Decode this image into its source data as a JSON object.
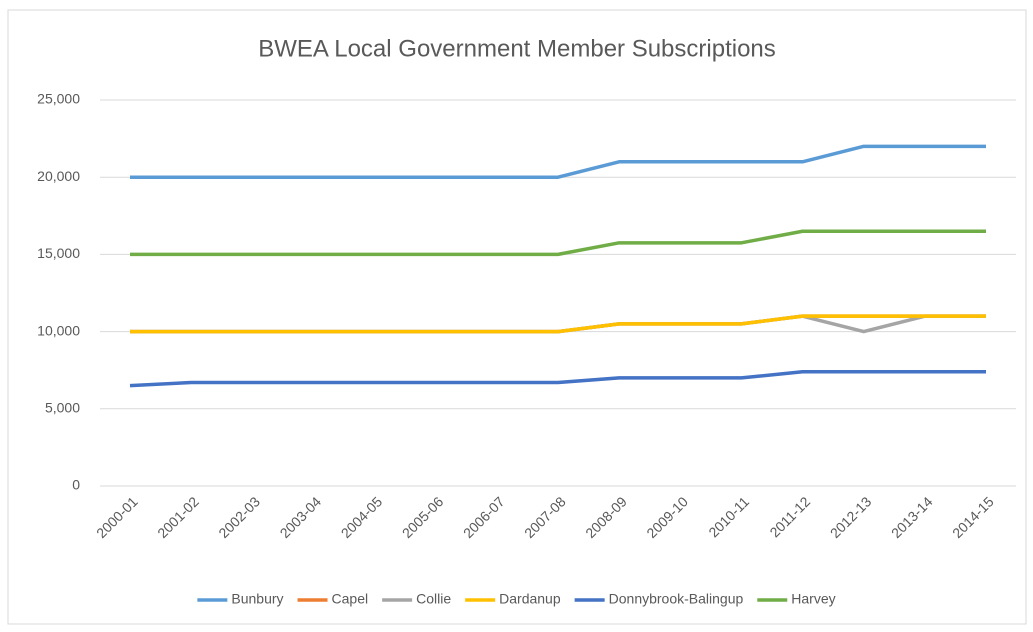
{
  "chart_data": {
    "type": "line",
    "title": "BWEA Local Government Member Subscriptions",
    "categories": [
      "2000-01",
      "2001-02",
      "2002-03",
      "2003-04",
      "2004-05",
      "2005-06",
      "2006-07",
      "2007-08",
      "2008-09",
      "2009-10",
      "2010-11",
      "2011-12",
      "2012-13",
      "2013-14",
      "2014-15"
    ],
    "series": [
      {
        "name": "Bunbury",
        "color": "#5b9bd5",
        "values": [
          20000,
          20000,
          20000,
          20000,
          20000,
          20000,
          20000,
          20000,
          21000,
          21000,
          21000,
          21000,
          22000,
          22000,
          22000
        ]
      },
      {
        "name": "Capel",
        "color": "#ed7d31",
        "values": [
          10000,
          10000,
          10000,
          10000,
          10000,
          10000,
          10000,
          10000,
          10500,
          10500,
          10500,
          11000,
          11000,
          11000,
          11000
        ]
      },
      {
        "name": "Collie",
        "color": "#a5a5a5",
        "values": [
          10000,
          10000,
          10000,
          10000,
          10000,
          10000,
          10000,
          10000,
          10500,
          10500,
          10500,
          11000,
          10000,
          11000,
          11000
        ]
      },
      {
        "name": "Dardanup",
        "color": "#ffc000",
        "values": [
          10000,
          10000,
          10000,
          10000,
          10000,
          10000,
          10000,
          10000,
          10500,
          10500,
          10500,
          11000,
          11000,
          11000,
          11000
        ]
      },
      {
        "name": "Donnybrook-Balingup",
        "color": "#4472c4",
        "values": [
          6500,
          6700,
          6700,
          6700,
          6700,
          6700,
          6700,
          6700,
          7000,
          7000,
          7000,
          7400,
          7400,
          7400,
          7400
        ]
      },
      {
        "name": "Harvey",
        "color": "#70ad47",
        "values": [
          15000,
          15000,
          15000,
          15000,
          15000,
          15000,
          15000,
          15000,
          15750,
          15750,
          15750,
          16500,
          16500,
          16500,
          16500
        ]
      }
    ],
    "ylim": [
      0,
      25000
    ],
    "yticks": [
      0,
      {
        "value": 5000,
        "label": "5,000"
      },
      {
        "value": 10000,
        "label": "10,000"
      },
      {
        "value": 15000,
        "label": "15,000"
      },
      {
        "value": 20000,
        "label": "20,000"
      },
      {
        "value": 25000,
        "label": "25,000"
      }
    ],
    "grid": true,
    "legend": "bottom"
  }
}
